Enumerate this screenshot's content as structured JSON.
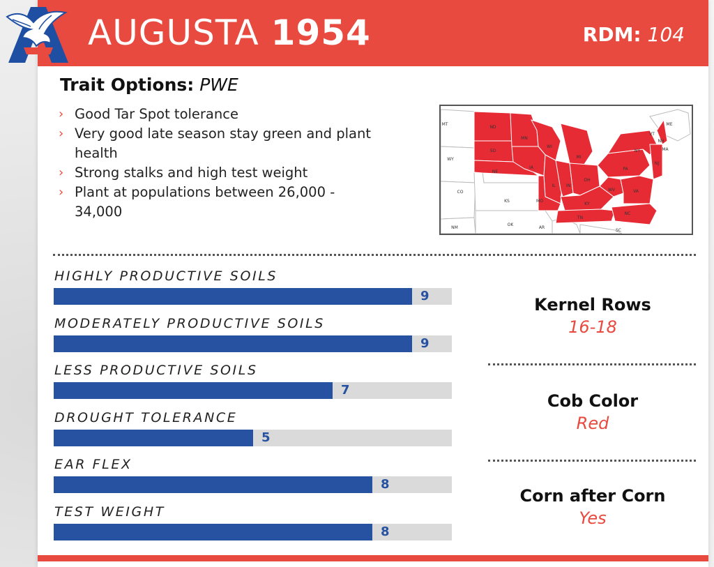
{
  "header": {
    "name": "AUGUSTA",
    "number": "1954",
    "rdm_label": "RDM:",
    "rdm_value": "104"
  },
  "trait": {
    "label": "Trait Options:",
    "value": "PWE"
  },
  "features": [
    "Good Tar Spot tolerance",
    "Very good late season stay green and plant health",
    "Strong stalks and high test weight",
    "Plant at populations between 26,000 - 34,000"
  ],
  "map": {
    "highlight_color": "#e62b35",
    "state_labels": {
      "ND": "ND",
      "SD": "SD",
      "NE": "NE",
      "MN": "MN",
      "IA": "IA",
      "WI": "WI",
      "IL": "IL",
      "MI": "MI",
      "IN": "IN",
      "OH": "OH",
      "MO": "MO",
      "KY": "KY",
      "TN": "TN",
      "PA": "PA",
      "NY": "NY",
      "WV": "WV",
      "VA": "VA",
      "NC": "NC",
      "NJ": "NJ",
      "MT": "MT",
      "WY": "WY",
      "CO": "CO",
      "KS": "KS",
      "OK": "OK",
      "AR": "AR",
      "NM": "NM",
      "SC": "SC",
      "ME": "ME",
      "VT": "VT",
      "NH": "NH",
      "MA": "MA"
    }
  },
  "ratings_scale_max": 10,
  "ratings": [
    {
      "label": "HIGHLY PRODUCTIVE SOILS",
      "value": 9
    },
    {
      "label": "MODERATELY PRODUCTIVE SOILS",
      "value": 9
    },
    {
      "label": "LESS PRODUCTIVE SOILS",
      "value": 7
    },
    {
      "label": "DROUGHT TOLERANCE",
      "value": 5
    },
    {
      "label": "EAR FLEX",
      "value": 8
    },
    {
      "label": "TEST WEIGHT",
      "value": 8
    }
  ],
  "stats": [
    {
      "label": "Kernel Rows",
      "value": "16-18"
    },
    {
      "label": "Cob Color",
      "value": "Red"
    },
    {
      "label": "Corn after Corn",
      "value": "Yes"
    }
  ],
  "colors": {
    "brand_red": "#e84a3f",
    "bar_blue": "#2752a2",
    "track_gray": "#dadada",
    "logo_blue": "#1f4fa3"
  }
}
